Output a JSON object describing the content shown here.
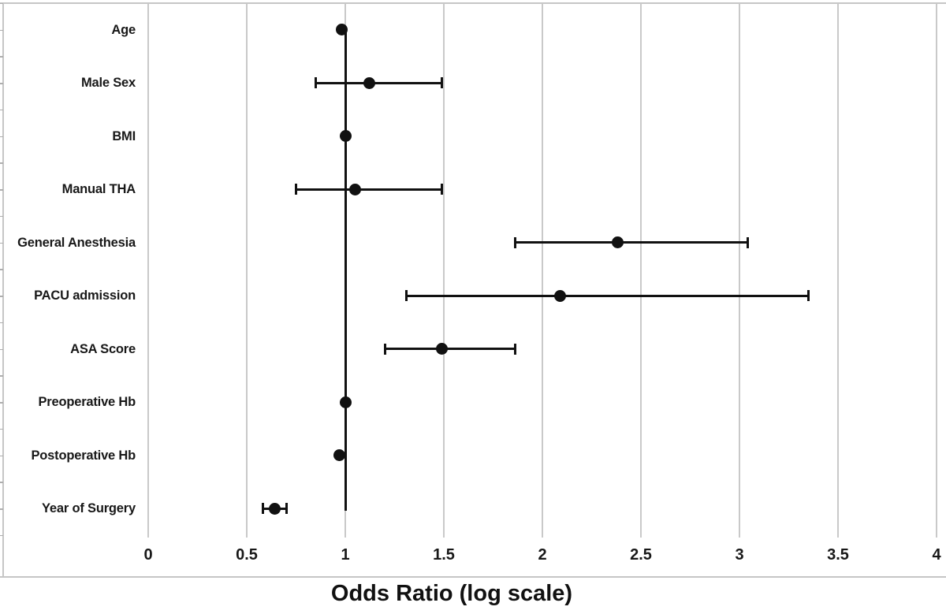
{
  "chart_data": {
    "type": "scatter",
    "subtype": "forest-plot-odds-ratios-with-95ci",
    "title": "",
    "xlabel": "Odds Ratio (log scale)",
    "ylabel": "",
    "xlim": [
      0,
      4
    ],
    "xticks": [
      0,
      0.5,
      1,
      1.5,
      2,
      2.5,
      3,
      3.5,
      4
    ],
    "xtick_labels": [
      "0",
      "0.5",
      "1",
      "1.5",
      "2",
      "2.5",
      "3",
      "3.5",
      "4"
    ],
    "grid": "vertical gridlines at every 0.5 units",
    "legend": "none",
    "reference_line_x": 1,
    "categories": [
      "Age",
      "Male Sex",
      "BMI",
      "Manual THA",
      "General Anesthesia",
      "PACU admission",
      "ASA Score",
      "Preoperative Hb",
      "Postoperative Hb",
      "Year of Surgery"
    ],
    "points": [
      {
        "label": "Age",
        "or": 0.98,
        "ci_low": null,
        "ci_high": null
      },
      {
        "label": "Male Sex",
        "or": 1.12,
        "ci_low": 0.85,
        "ci_high": 1.49
      },
      {
        "label": "BMI",
        "or": 1.0,
        "ci_low": null,
        "ci_high": null
      },
      {
        "label": "Manual THA",
        "or": 1.05,
        "ci_low": 0.75,
        "ci_high": 1.49
      },
      {
        "label": "General Anesthesia",
        "or": 2.38,
        "ci_low": 1.86,
        "ci_high": 3.04
      },
      {
        "label": "PACU admission",
        "or": 2.09,
        "ci_low": 1.31,
        "ci_high": 3.35
      },
      {
        "label": "ASA Score",
        "or": 1.49,
        "ci_low": 1.2,
        "ci_high": 1.86
      },
      {
        "label": "Preoperative Hb",
        "or": 1.0,
        "ci_low": null,
        "ci_high": null
      },
      {
        "label": "Postoperative Hb",
        "or": 0.97,
        "ci_low": null,
        "ci_high": null
      },
      {
        "label": "Year of Surgery",
        "or": 0.64,
        "ci_low": 0.58,
        "ci_high": 0.7
      }
    ],
    "colors": {
      "marker": "#111111",
      "ci_line": "#111111",
      "reference_line": "#111111",
      "gridline": "#c9c9c9",
      "axis_border": "#c6c6c6",
      "text": "#181818",
      "background": "#ffffff"
    }
  }
}
